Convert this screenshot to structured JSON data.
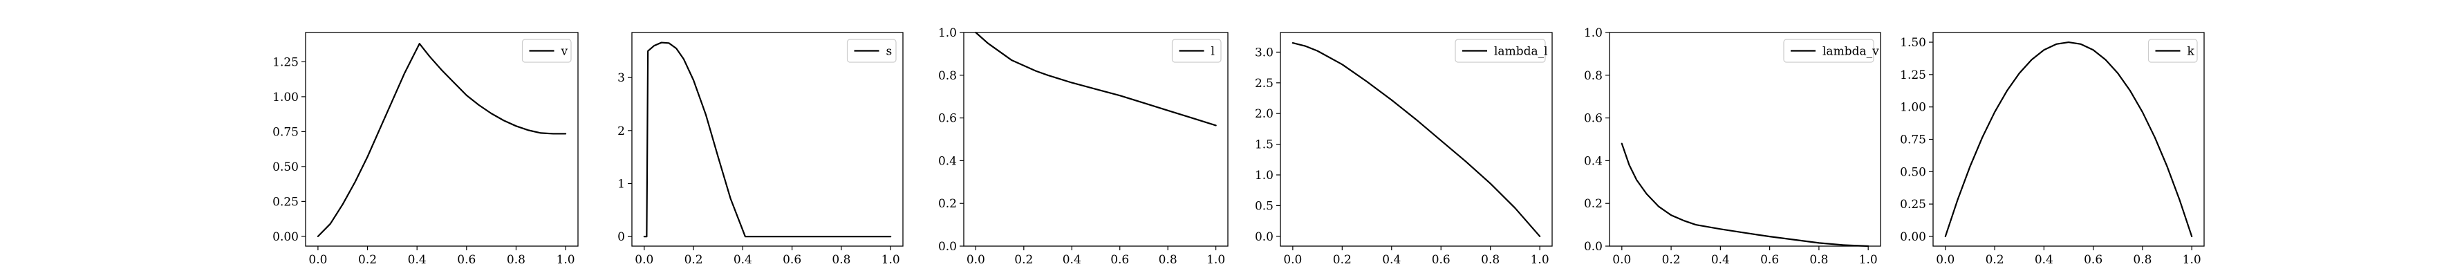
{
  "chart_data": [
    {
      "type": "line",
      "xlim": [
        -0.05,
        1.05
      ],
      "ylim": [
        -0.07,
        1.46
      ],
      "xticks": [
        "0.0",
        "0.2",
        "0.4",
        "0.6",
        "0.8",
        "1.0"
      ],
      "yticks": [
        "0.00",
        "0.25",
        "0.50",
        "0.75",
        "1.00",
        "1.25"
      ],
      "legend_position": "top-right",
      "series": [
        {
          "name": "v",
          "x": [
            0.0,
            0.05,
            0.1,
            0.15,
            0.2,
            0.25,
            0.3,
            0.35,
            0.41,
            0.45,
            0.5,
            0.55,
            0.6,
            0.65,
            0.7,
            0.75,
            0.8,
            0.85,
            0.9,
            0.95,
            1.0
          ],
          "y": [
            0.0,
            0.09,
            0.23,
            0.39,
            0.57,
            0.77,
            0.97,
            1.17,
            1.38,
            1.29,
            1.19,
            1.1,
            1.01,
            0.94,
            0.88,
            0.83,
            0.79,
            0.76,
            0.74,
            0.735,
            0.735
          ]
        }
      ]
    },
    {
      "type": "line",
      "xlim": [
        -0.05,
        1.05
      ],
      "ylim": [
        -0.18,
        3.85
      ],
      "xticks": [
        "0.0",
        "0.2",
        "0.4",
        "0.6",
        "0.8",
        "1.0"
      ],
      "yticks": [
        "0",
        "1",
        "2",
        "3"
      ],
      "legend_position": "top-right",
      "series": [
        {
          "name": "s",
          "x": [
            0.0,
            0.01,
            0.015,
            0.04,
            0.07,
            0.1,
            0.13,
            0.16,
            0.2,
            0.25,
            0.3,
            0.35,
            0.41,
            0.5,
            0.6,
            0.7,
            0.8,
            0.9,
            1.0
          ],
          "y": [
            0.0,
            0.0,
            3.5,
            3.6,
            3.66,
            3.65,
            3.55,
            3.35,
            2.95,
            2.3,
            1.5,
            0.72,
            0.0,
            0.0,
            0.0,
            0.0,
            0.0,
            0.0,
            0.0
          ]
        }
      ]
    },
    {
      "type": "line",
      "xlim": [
        -0.05,
        1.05
      ],
      "ylim": [
        0.0,
        1.0
      ],
      "xticks": [
        "0.0",
        "0.2",
        "0.4",
        "0.6",
        "0.8",
        "1.0"
      ],
      "yticks": [
        "0.0",
        "0.2",
        "0.4",
        "0.6",
        "0.8",
        "1.0"
      ],
      "legend_position": "top-right",
      "series": [
        {
          "name": "l",
          "x": [
            0.0,
            0.05,
            0.1,
            0.15,
            0.2,
            0.25,
            0.3,
            0.4,
            0.5,
            0.6,
            0.7,
            0.8,
            0.9,
            1.0
          ],
          "y": [
            1.0,
            0.95,
            0.91,
            0.87,
            0.845,
            0.82,
            0.8,
            0.765,
            0.735,
            0.705,
            0.67,
            0.635,
            0.6,
            0.565
          ]
        }
      ]
    },
    {
      "type": "line",
      "xlim": [
        -0.05,
        1.05
      ],
      "ylim": [
        -0.16,
        3.32
      ],
      "xticks": [
        "0.0",
        "0.2",
        "0.4",
        "0.6",
        "0.8",
        "1.0"
      ],
      "yticks": [
        "0.0",
        "0.5",
        "1.0",
        "1.5",
        "2.0",
        "2.5",
        "3.0"
      ],
      "legend_position": "top-right",
      "series": [
        {
          "name": "lambda_l",
          "x": [
            0.0,
            0.05,
            0.1,
            0.2,
            0.3,
            0.4,
            0.5,
            0.6,
            0.7,
            0.8,
            0.9,
            1.0
          ],
          "y": [
            3.15,
            3.1,
            3.02,
            2.8,
            2.52,
            2.22,
            1.9,
            1.56,
            1.22,
            0.86,
            0.46,
            0.0
          ]
        }
      ]
    },
    {
      "type": "line",
      "xlim": [
        -0.05,
        1.05
      ],
      "ylim": [
        0.0,
        1.0
      ],
      "xticks": [
        "0.0",
        "0.2",
        "0.4",
        "0.6",
        "0.8",
        "1.0"
      ],
      "yticks": [
        "0.0",
        "0.2",
        "0.4",
        "0.6",
        "0.8",
        "1.0"
      ],
      "legend_position": "top-right",
      "series": [
        {
          "name": "lambda_v",
          "x": [
            0.0,
            0.03,
            0.06,
            0.1,
            0.15,
            0.2,
            0.25,
            0.3,
            0.4,
            0.5,
            0.6,
            0.7,
            0.8,
            0.9,
            1.0
          ],
          "y": [
            0.48,
            0.38,
            0.31,
            0.245,
            0.185,
            0.145,
            0.12,
            0.1,
            0.08,
            0.062,
            0.045,
            0.03,
            0.015,
            0.005,
            0.0
          ]
        }
      ]
    },
    {
      "type": "line",
      "xlim": [
        -0.05,
        1.05
      ],
      "ylim": [
        -0.075,
        1.575
      ],
      "xticks": [
        "0.0",
        "0.2",
        "0.4",
        "0.6",
        "0.8",
        "1.0"
      ],
      "yticks": [
        "0.00",
        "0.25",
        "0.50",
        "0.75",
        "1.00",
        "1.25",
        "1.50"
      ],
      "legend_position": "top-right",
      "series": [
        {
          "name": "k",
          "x": [
            0.0,
            0.05,
            0.1,
            0.15,
            0.2,
            0.25,
            0.3,
            0.35,
            0.4,
            0.45,
            0.5,
            0.55,
            0.6,
            0.65,
            0.7,
            0.75,
            0.8,
            0.85,
            0.9,
            0.95,
            1.0
          ],
          "y": [
            0.0,
            0.285,
            0.54,
            0.765,
            0.96,
            1.125,
            1.26,
            1.365,
            1.44,
            1.485,
            1.5,
            1.485,
            1.44,
            1.365,
            1.26,
            1.125,
            0.96,
            0.765,
            0.54,
            0.285,
            0.0
          ]
        }
      ]
    }
  ]
}
